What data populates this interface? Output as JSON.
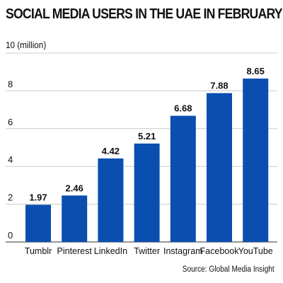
{
  "chart_data": {
    "type": "bar",
    "title": "SOCIAL MEDIA USERS IN THE UAE IN FEBRUARY",
    "unit_label": "10 (million)",
    "source": "Source: Global Media Insight",
    "categories": [
      "Tumblr",
      "Pinterest",
      "LinkedIn",
      "Twitter",
      "Instagram",
      "Facebook",
      "YouTube"
    ],
    "values": [
      1.97,
      2.46,
      4.42,
      5.21,
      6.68,
      7.88,
      8.65
    ],
    "data_labels": [
      "1.97",
      "2.46",
      "4.42",
      "5.21",
      "6.68",
      "7.88",
      "8.65"
    ],
    "yticks": [
      0,
      2,
      4,
      6,
      8
    ],
    "ylim": [
      0,
      10
    ],
    "grid": true,
    "bar_color": "#0a4fb0",
    "grid_color": "#cccccc"
  }
}
